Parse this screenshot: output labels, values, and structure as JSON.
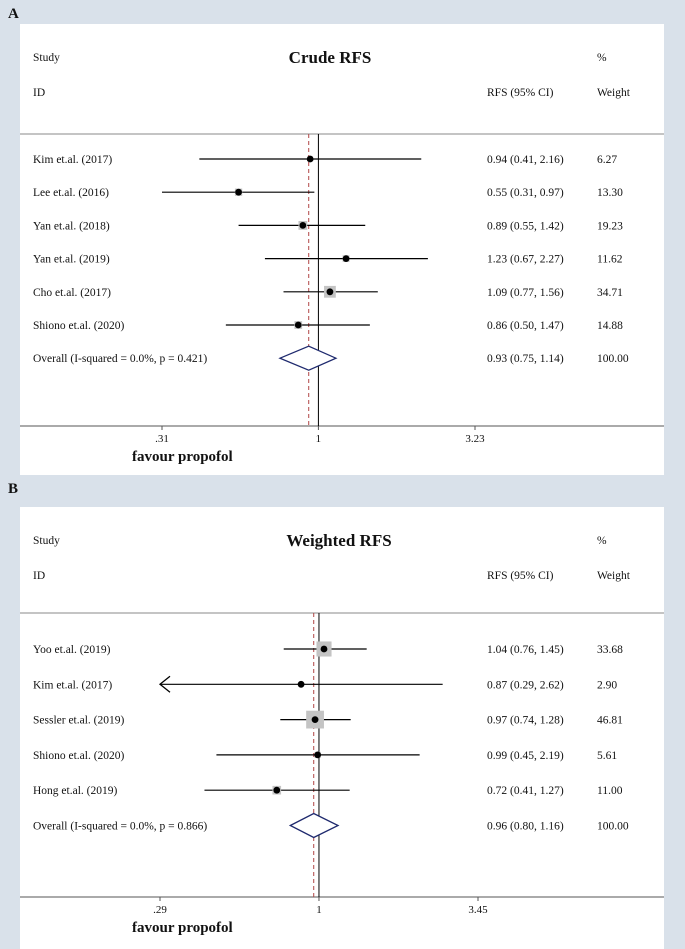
{
  "chart_data": [
    {
      "panel": "A",
      "type": "forest",
      "title": "Crude RFS",
      "header": {
        "study": "Study",
        "id": "ID",
        "est_label": "RFS (95% CI)",
        "pct": "%",
        "weight": "Weight"
      },
      "studies": [
        {
          "label": "Kim et.al. (2017)",
          "est": 0.94,
          "lo": 0.41,
          "hi": 2.16,
          "ci_text": "0.94 (0.41, 2.16)",
          "weight": "6.27"
        },
        {
          "label": "Lee et.al. (2016)",
          "est": 0.55,
          "lo": 0.31,
          "hi": 0.97,
          "ci_text": "0.55 (0.31, 0.97)",
          "weight": "13.30"
        },
        {
          "label": "Yan et.al. (2018)",
          "est": 0.89,
          "lo": 0.55,
          "hi": 1.42,
          "ci_text": "0.89 (0.55, 1.42)",
          "weight": "19.23"
        },
        {
          "label": "Yan et.al. (2019)",
          "est": 1.23,
          "lo": 0.67,
          "hi": 2.27,
          "ci_text": "1.23 (0.67, 2.27)",
          "weight": "11.62"
        },
        {
          "label": "Cho et.al. (2017)",
          "est": 1.09,
          "lo": 0.77,
          "hi": 1.56,
          "ci_text": "1.09 (0.77, 1.56)",
          "weight": "34.71"
        },
        {
          "label": "Shiono et.al. (2020)",
          "est": 0.86,
          "lo": 0.5,
          "hi": 1.47,
          "ci_text": "0.86 (0.50, 1.47)",
          "weight": "14.88"
        }
      ],
      "overall": {
        "label": "Overall  (I-squared = 0.0%, p = 0.421)",
        "est": 0.93,
        "lo": 0.75,
        "hi": 1.14,
        "ci_text": "0.93 (0.75, 1.14)",
        "weight": "100.00"
      },
      "axis": {
        "scale": "log",
        "ticks": [
          0.31,
          1,
          3.23
        ],
        "tick_labels": [
          ".31",
          "1",
          "3.23"
        ],
        "ref_line": 1
      },
      "favour_label": "favour propofol"
    },
    {
      "panel": "B",
      "type": "forest",
      "title": "Weighted RFS",
      "header": {
        "study": "Study",
        "id": "ID",
        "est_label": "RFS (95% CI)",
        "pct": "%",
        "weight": "Weight"
      },
      "studies": [
        {
          "label": "Yoo et.al. (2019)",
          "est": 1.04,
          "lo": 0.76,
          "hi": 1.45,
          "ci_text": "1.04 (0.76, 1.45)",
          "weight": "33.68"
        },
        {
          "label": "Kim et.al. (2017)",
          "est": 0.87,
          "lo": 0.29,
          "hi": 2.62,
          "ci_text": "0.87 (0.29, 2.62)",
          "weight": "2.90",
          "arrow_left": true
        },
        {
          "label": "Sessler et.al. (2019)",
          "est": 0.97,
          "lo": 0.74,
          "hi": 1.28,
          "ci_text": "0.97 (0.74, 1.28)",
          "weight": "46.81"
        },
        {
          "label": "Shiono et.al. (2020)",
          "est": 0.99,
          "lo": 0.45,
          "hi": 2.19,
          "ci_text": "0.99 (0.45, 2.19)",
          "weight": "5.61"
        },
        {
          "label": "Hong et.al. (2019)",
          "est": 0.72,
          "lo": 0.41,
          "hi": 1.27,
          "ci_text": "0.72 (0.41, 1.27)",
          "weight": "11.00"
        }
      ],
      "overall": {
        "label": "Overall  (I-squared = 0.0%, p = 0.866)",
        "est": 0.96,
        "lo": 0.8,
        "hi": 1.16,
        "ci_text": "0.96 (0.80, 1.16)",
        "weight": "100.00"
      },
      "axis": {
        "scale": "log",
        "ticks": [
          0.29,
          1,
          3.45
        ],
        "tick_labels": [
          ".29",
          "1",
          "3.45"
        ],
        "ref_line": 1
      },
      "favour_label": "favour propofol"
    }
  ],
  "colors": {
    "background": "#d9e1ea",
    "plot": "#ffffff",
    "line": "#000000",
    "diamond": "#1f2a6e",
    "weight_box": "#c4c4c4",
    "ref_dash": "#b04545"
  }
}
